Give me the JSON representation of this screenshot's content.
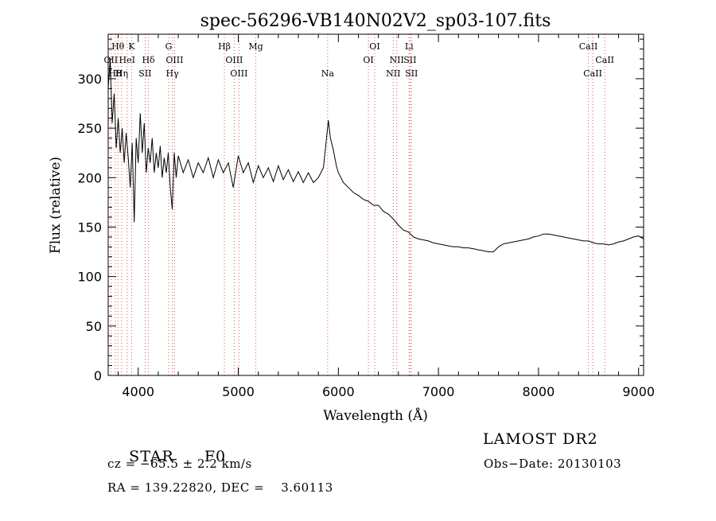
{
  "chart_data": {
    "type": "line",
    "title": "spec-56296-VB140N02V2_sp03-107.fits",
    "xlabel": "Wavelength (Å)",
    "ylabel": "Flux (relative)",
    "xlim": [
      3700,
      9050
    ],
    "ylim": [
      0,
      345
    ],
    "xticks": [
      4000,
      5000,
      6000,
      7000,
      8000,
      9000
    ],
    "yticks": [
      0,
      50,
      100,
      150,
      200,
      250,
      300
    ],
    "line_color": "#000000",
    "marker_color": "#d9534f",
    "series": [
      {
        "points": [
          [
            3700,
            290
          ],
          [
            3720,
            320
          ],
          [
            3740,
            255
          ],
          [
            3760,
            285
          ],
          [
            3780,
            230
          ],
          [
            3800,
            260
          ],
          [
            3820,
            225
          ],
          [
            3840,
            250
          ],
          [
            3860,
            215
          ],
          [
            3880,
            245
          ],
          [
            3900,
            220
          ],
          [
            3920,
            190
          ],
          [
            3940,
            235
          ],
          [
            3960,
            155
          ],
          [
            3980,
            240
          ],
          [
            4000,
            215
          ],
          [
            4020,
            265
          ],
          [
            4040,
            225
          ],
          [
            4060,
            255
          ],
          [
            4080,
            205
          ],
          [
            4100,
            230
          ],
          [
            4120,
            215
          ],
          [
            4140,
            240
          ],
          [
            4160,
            205
          ],
          [
            4180,
            225
          ],
          [
            4200,
            210
          ],
          [
            4220,
            232
          ],
          [
            4240,
            200
          ],
          [
            4260,
            220
          ],
          [
            4280,
            205
          ],
          [
            4300,
            225
          ],
          [
            4320,
            190
          ],
          [
            4340,
            168
          ],
          [
            4360,
            225
          ],
          [
            4380,
            200
          ],
          [
            4400,
            222
          ],
          [
            4450,
            205
          ],
          [
            4500,
            218
          ],
          [
            4550,
            200
          ],
          [
            4600,
            215
          ],
          [
            4650,
            205
          ],
          [
            4700,
            220
          ],
          [
            4750,
            200
          ],
          [
            4800,
            218
          ],
          [
            4850,
            205
          ],
          [
            4900,
            215
          ],
          [
            4950,
            190
          ],
          [
            5000,
            222
          ],
          [
            5050,
            205
          ],
          [
            5100,
            215
          ],
          [
            5150,
            195
          ],
          [
            5200,
            212
          ],
          [
            5250,
            200
          ],
          [
            5300,
            210
          ],
          [
            5350,
            196
          ],
          [
            5400,
            212
          ],
          [
            5450,
            198
          ],
          [
            5500,
            208
          ],
          [
            5550,
            196
          ],
          [
            5600,
            206
          ],
          [
            5650,
            195
          ],
          [
            5700,
            205
          ],
          [
            5750,
            195
          ],
          [
            5800,
            200
          ],
          [
            5850,
            210
          ],
          [
            5880,
            238
          ],
          [
            5900,
            258
          ],
          [
            5920,
            240
          ],
          [
            5950,
            228
          ],
          [
            5980,
            212
          ],
          [
            6000,
            205
          ],
          [
            6050,
            195
          ],
          [
            6100,
            190
          ],
          [
            6150,
            185
          ],
          [
            6200,
            182
          ],
          [
            6250,
            178
          ],
          [
            6300,
            176
          ],
          [
            6350,
            172
          ],
          [
            6400,
            172
          ],
          [
            6450,
            166
          ],
          [
            6500,
            163
          ],
          [
            6550,
            158
          ],
          [
            6600,
            152
          ],
          [
            6650,
            147
          ],
          [
            6700,
            145
          ],
          [
            6750,
            140
          ],
          [
            6800,
            138
          ],
          [
            6850,
            137
          ],
          [
            6900,
            136
          ],
          [
            6950,
            134
          ],
          [
            7000,
            133
          ],
          [
            7050,
            132
          ],
          [
            7100,
            131
          ],
          [
            7150,
            130
          ],
          [
            7200,
            130
          ],
          [
            7250,
            129
          ],
          [
            7300,
            129
          ],
          [
            7350,
            128
          ],
          [
            7400,
            127
          ],
          [
            7450,
            126
          ],
          [
            7500,
            125
          ],
          [
            7550,
            125
          ],
          [
            7600,
            130
          ],
          [
            7650,
            133
          ],
          [
            7700,
            134
          ],
          [
            7750,
            135
          ],
          [
            7800,
            136
          ],
          [
            7850,
            137
          ],
          [
            7900,
            138
          ],
          [
            7950,
            140
          ],
          [
            8000,
            141
          ],
          [
            8050,
            143
          ],
          [
            8100,
            143
          ],
          [
            8150,
            142
          ],
          [
            8200,
            141
          ],
          [
            8250,
            140
          ],
          [
            8300,
            139
          ],
          [
            8350,
            138
          ],
          [
            8400,
            137
          ],
          [
            8450,
            136
          ],
          [
            8500,
            136
          ],
          [
            8550,
            134
          ],
          [
            8600,
            133
          ],
          [
            8650,
            133
          ],
          [
            8700,
            132
          ],
          [
            8750,
            133
          ],
          [
            8800,
            135
          ],
          [
            8850,
            136
          ],
          [
            8900,
            138
          ],
          [
            8950,
            140
          ],
          [
            9000,
            141
          ],
          [
            9050,
            138
          ]
        ]
      }
    ],
    "line_markers": [
      {
        "label": "Hθ",
        "wave": 3797,
        "row": 0
      },
      {
        "label": "K",
        "wave": 3934,
        "row": 0
      },
      {
        "label": "OII",
        "wave": 3727,
        "row": 1
      },
      {
        "label": "HeI",
        "wave": 3889,
        "row": 1
      },
      {
        "label": "H8",
        "wave": 3770,
        "row": 2
      },
      {
        "label": "Hη",
        "wave": 3835,
        "row": 2
      },
      {
        "label": "Hδ",
        "wave": 4102,
        "row": 1
      },
      {
        "label": "SII",
        "wave": 4069,
        "row": 2
      },
      {
        "label": "G",
        "wave": 4304,
        "row": 0
      },
      {
        "label": "OIII",
        "wave": 4363,
        "row": 1
      },
      {
        "label": "Hγ",
        "wave": 4341,
        "row": 2
      },
      {
        "label": "Hβ",
        "wave": 4861,
        "row": 0
      },
      {
        "label": "OIII",
        "wave": 4959,
        "row": 1
      },
      {
        "label": "OIII",
        "wave": 5007,
        "row": 2
      },
      {
        "label": "Mg",
        "wave": 5175,
        "row": 0
      },
      {
        "label": "Na",
        "wave": 5893,
        "row": 2
      },
      {
        "label": "OI",
        "wave": 6300,
        "row": 1
      },
      {
        "label": "OI",
        "wave": 6363,
        "row": 0
      },
      {
        "label": "NII",
        "wave": 6548,
        "row": 2
      },
      {
        "label": "NII",
        "wave": 6583,
        "row": 1
      },
      {
        "label": "Li",
        "wave": 6707,
        "row": 0
      },
      {
        "label": "SII",
        "wave": 6716,
        "row": 1
      },
      {
        "label": "SII",
        "wave": 6731,
        "row": 2
      },
      {
        "label": "CaII",
        "wave": 8498,
        "row": 0
      },
      {
        "label": "CaII",
        "wave": 8542,
        "row": 2
      },
      {
        "label": "CaII",
        "wave": 8662,
        "row": 1
      }
    ]
  },
  "info": {
    "object_class": "STAR",
    "subclass": "F0",
    "survey": "LAMOST DR2",
    "velocity": "cz = −65.5 ± 2.2 km/s",
    "obs_date": "Obs−Date: 20130103",
    "coords": "RA = 139.22820, DEC =    3.60113"
  }
}
